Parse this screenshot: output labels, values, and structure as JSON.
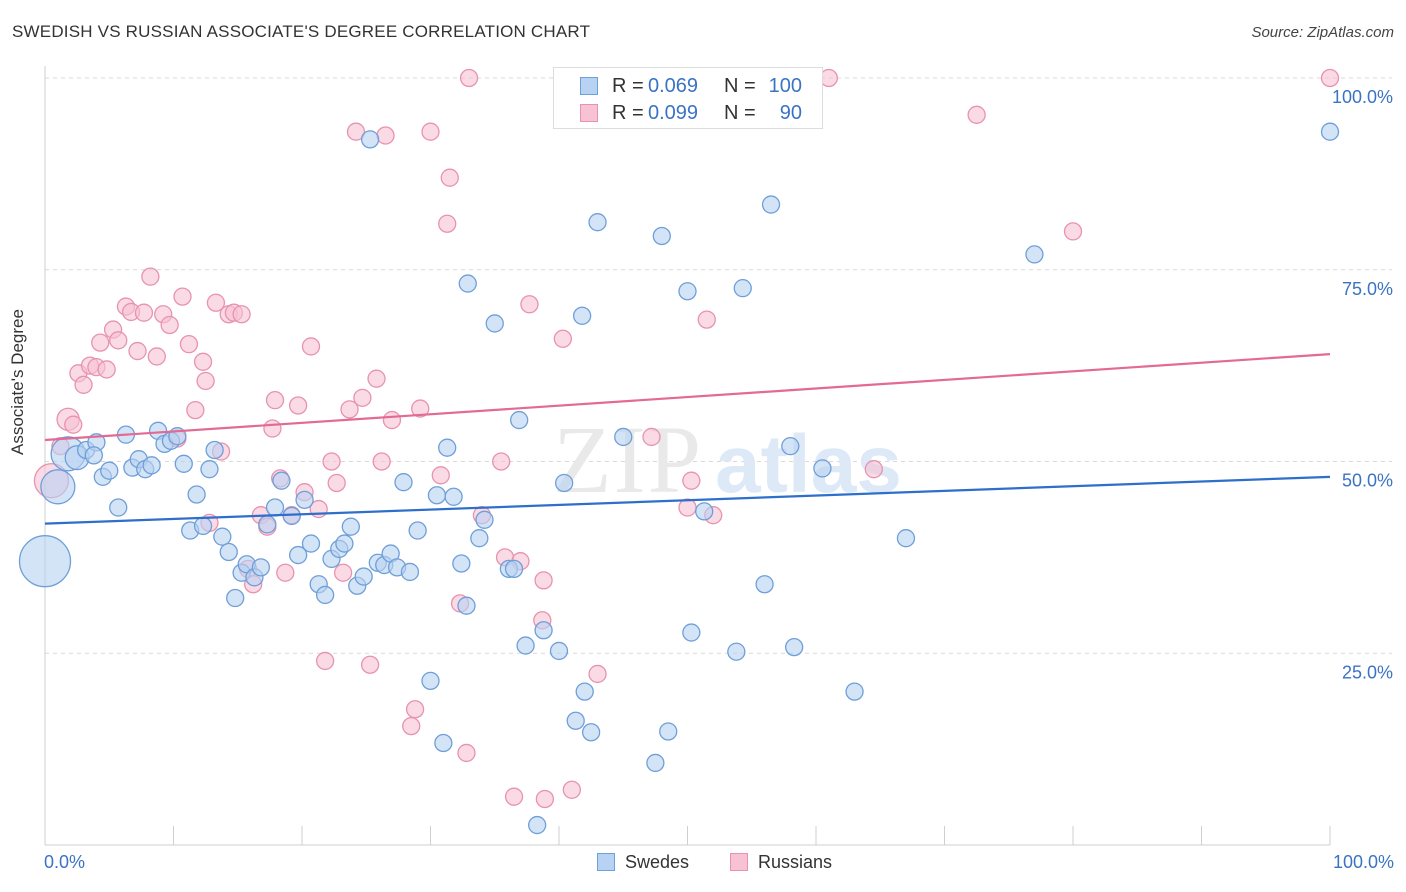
{
  "title": "SWEDISH VS RUSSIAN ASSOCIATE'S DEGREE CORRELATION CHART",
  "source": "Source: ZipAtlas.com",
  "watermark": {
    "zip": "ZIP",
    "atlas": "atlas"
  },
  "colors": {
    "swedes_fill": "#b7d2f2",
    "swedes_stroke": "#6f9fd8",
    "swedes_line": "#2d6fcb",
    "russians_fill": "#f7c2d3",
    "russians_stroke": "#e893ae",
    "russians_line": "#e26a93",
    "axis_text": "#3b73c4",
    "grid": "#d9d9d9"
  },
  "stats": {
    "swedes": {
      "r_label": "R =",
      "r_value": "0.069",
      "n_label": "N =",
      "n_value": "100"
    },
    "russians": {
      "r_label": "R =",
      "r_value": "0.099",
      "n_label": "N =",
      "n_value": "90"
    }
  },
  "legend": {
    "swedes": "Swedes",
    "russians": "Russians"
  },
  "chart_data": {
    "type": "scatter",
    "title": "SWEDISH VS RUSSIAN ASSOCIATE'S DEGREE CORRELATION CHART",
    "xlabel": "",
    "ylabel": "Associate's Degree",
    "xlim": [
      0,
      100
    ],
    "ylim": [
      0,
      100
    ],
    "x_tick_labels": [
      "0.0%",
      "100.0%"
    ],
    "y_ticks": [
      25,
      50,
      75,
      100
    ],
    "y_tick_labels": [
      "25.0%",
      "50.0%",
      "75.0%",
      "100.0%"
    ],
    "series": [
      {
        "name": "Swedes",
        "trend": {
          "x": [
            0,
            100
          ],
          "y": [
            41.9,
            48.0
          ]
        },
        "points": [
          [
            0.0,
            37.0,
            3
          ],
          [
            1.0,
            46.7,
            2
          ],
          [
            1.8,
            51.0,
            2
          ],
          [
            2.5,
            50.5,
            1.4
          ],
          [
            3.2,
            51.5,
            1
          ],
          [
            4.0,
            52.5,
            1
          ],
          [
            3.8,
            50.8,
            1
          ],
          [
            4.5,
            48.0,
            1
          ],
          [
            5.0,
            48.8,
            1
          ],
          [
            5.7,
            44.0,
            1
          ],
          [
            6.3,
            53.5,
            1
          ],
          [
            6.8,
            49.2,
            1
          ],
          [
            7.3,
            50.3,
            1
          ],
          [
            7.8,
            49.0,
            1
          ],
          [
            8.3,
            49.5,
            1
          ],
          [
            8.8,
            54.0,
            1
          ],
          [
            9.3,
            52.3,
            1
          ],
          [
            9.8,
            52.7,
            1
          ],
          [
            10.3,
            53.3,
            1
          ],
          [
            10.8,
            49.7,
            1
          ],
          [
            11.3,
            41.0,
            1
          ],
          [
            11.8,
            45.7,
            1
          ],
          [
            12.3,
            41.6,
            1
          ],
          [
            12.8,
            49.0,
            1
          ],
          [
            13.2,
            51.5,
            1
          ],
          [
            13.8,
            40.2,
            1
          ],
          [
            14.3,
            38.2,
            1
          ],
          [
            14.8,
            32.2,
            1
          ],
          [
            15.3,
            35.5,
            1
          ],
          [
            15.7,
            36.6,
            1
          ],
          [
            16.3,
            34.9,
            1
          ],
          [
            16.8,
            36.2,
            1
          ],
          [
            17.3,
            41.8,
            1
          ],
          [
            17.9,
            44.0,
            1
          ],
          [
            18.4,
            47.5,
            1
          ],
          [
            19.2,
            42.9,
            1
          ],
          [
            19.7,
            37.8,
            1
          ],
          [
            20.2,
            45.0,
            1
          ],
          [
            20.7,
            39.3,
            1
          ],
          [
            21.3,
            34.0,
            1
          ],
          [
            21.8,
            32.6,
            1
          ],
          [
            22.3,
            37.3,
            1
          ],
          [
            22.9,
            38.6,
            1
          ],
          [
            23.3,
            39.3,
            1
          ],
          [
            23.8,
            41.5,
            1
          ],
          [
            24.3,
            33.8,
            1
          ],
          [
            24.8,
            35.0,
            1
          ],
          [
            25.3,
            92.0,
            1
          ],
          [
            25.9,
            36.8,
            1
          ],
          [
            26.4,
            36.5,
            1
          ],
          [
            26.9,
            38.0,
            1
          ],
          [
            27.4,
            36.2,
            1
          ],
          [
            27.9,
            47.3,
            1
          ],
          [
            28.4,
            35.6,
            1
          ],
          [
            29.0,
            41.0,
            1
          ],
          [
            30.0,
            21.4,
            1
          ],
          [
            30.5,
            45.6,
            1
          ],
          [
            31.0,
            13.3,
            1
          ],
          [
            31.3,
            51.8,
            1
          ],
          [
            31.8,
            45.4,
            1
          ],
          [
            32.4,
            36.7,
            1
          ],
          [
            32.8,
            31.2,
            1
          ],
          [
            32.9,
            73.2,
            1
          ],
          [
            33.8,
            40.0,
            1
          ],
          [
            34.2,
            42.4,
            1
          ],
          [
            35.0,
            68.0,
            1
          ],
          [
            36.1,
            36.0,
            1
          ],
          [
            36.5,
            36.0,
            1
          ],
          [
            36.9,
            55.4,
            1
          ],
          [
            37.4,
            26.0,
            1
          ],
          [
            38.3,
            2.6,
            1
          ],
          [
            38.8,
            28.0,
            1
          ],
          [
            40.0,
            25.3,
            1
          ],
          [
            40.4,
            47.2,
            1
          ],
          [
            41.3,
            16.2,
            1
          ],
          [
            41.8,
            69.0,
            1
          ],
          [
            42.0,
            20.0,
            1
          ],
          [
            42.5,
            14.7,
            1
          ],
          [
            43.0,
            81.2,
            1
          ],
          [
            45.0,
            53.2,
            1
          ],
          [
            47.5,
            10.7,
            1
          ],
          [
            48.0,
            79.4,
            1
          ],
          [
            48.5,
            14.8,
            1
          ],
          [
            50.0,
            72.2,
            1
          ],
          [
            50.3,
            27.7,
            1
          ],
          [
            51.3,
            43.5,
            1
          ],
          [
            53.8,
            25.2,
            1
          ],
          [
            54.3,
            72.6,
            1
          ],
          [
            56.0,
            34.0,
            1
          ],
          [
            56.5,
            83.5,
            1
          ],
          [
            58.0,
            52.0,
            1
          ],
          [
            58.3,
            25.8,
            1
          ],
          [
            60.5,
            49.1,
            1
          ],
          [
            63.0,
            20.0,
            1
          ],
          [
            67.0,
            40.0,
            1
          ],
          [
            77.0,
            77.0,
            1
          ],
          [
            100.0,
            93.0,
            1
          ]
        ]
      },
      {
        "name": "Russians",
        "trend": {
          "x": [
            0,
            100
          ],
          "y": [
            52.8,
            64.0
          ]
        },
        "points": [
          [
            0.5,
            47.5,
            2
          ],
          [
            1.2,
            52.0,
            1
          ],
          [
            1.8,
            55.5,
            1.3
          ],
          [
            2.2,
            54.8,
            1
          ],
          [
            2.6,
            61.5,
            1
          ],
          [
            3.0,
            60.0,
            1
          ],
          [
            3.5,
            62.5,
            1
          ],
          [
            4.0,
            62.3,
            1
          ],
          [
            4.3,
            65.5,
            1
          ],
          [
            4.8,
            62.0,
            1
          ],
          [
            5.3,
            67.2,
            1
          ],
          [
            5.7,
            65.8,
            1
          ],
          [
            6.3,
            70.2,
            1
          ],
          [
            6.7,
            69.5,
            1
          ],
          [
            7.2,
            64.4,
            1
          ],
          [
            7.7,
            69.4,
            1
          ],
          [
            8.2,
            74.1,
            1
          ],
          [
            8.7,
            63.7,
            1
          ],
          [
            9.2,
            69.2,
            1
          ],
          [
            9.7,
            67.8,
            1
          ],
          [
            10.3,
            53.0,
            1
          ],
          [
            10.7,
            71.5,
            1
          ],
          [
            11.2,
            65.3,
            1
          ],
          [
            11.7,
            56.7,
            1
          ],
          [
            12.3,
            63.0,
            1
          ],
          [
            12.5,
            60.5,
            1
          ],
          [
            12.8,
            42.0,
            1
          ],
          [
            13.3,
            70.7,
            1
          ],
          [
            13.7,
            51.3,
            1
          ],
          [
            14.3,
            69.2,
            1
          ],
          [
            14.7,
            69.4,
            1
          ],
          [
            15.3,
            69.2,
            1
          ],
          [
            15.8,
            36.0,
            1
          ],
          [
            16.2,
            34.0,
            1
          ],
          [
            16.8,
            43.0,
            1
          ],
          [
            17.3,
            41.5,
            1
          ],
          [
            17.7,
            54.3,
            1
          ],
          [
            17.9,
            58.0,
            1
          ],
          [
            18.3,
            47.8,
            1
          ],
          [
            18.7,
            35.5,
            1
          ],
          [
            19.2,
            43.0,
            1
          ],
          [
            19.7,
            57.3,
            1
          ],
          [
            20.2,
            46.0,
            1
          ],
          [
            20.7,
            65.0,
            1
          ],
          [
            21.3,
            43.8,
            1
          ],
          [
            21.8,
            24.0,
            1
          ],
          [
            22.3,
            50.0,
            1
          ],
          [
            22.7,
            47.2,
            1
          ],
          [
            23.2,
            35.5,
            1
          ],
          [
            23.7,
            56.8,
            1
          ],
          [
            24.2,
            93.0,
            1
          ],
          [
            24.7,
            58.3,
            1
          ],
          [
            25.3,
            23.5,
            1
          ],
          [
            25.8,
            60.8,
            1
          ],
          [
            26.2,
            50.0,
            1
          ],
          [
            26.5,
            92.5,
            1
          ],
          [
            27.0,
            55.4,
            1
          ],
          [
            28.5,
            15.5,
            1
          ],
          [
            28.8,
            17.7,
            1
          ],
          [
            29.2,
            56.9,
            1
          ],
          [
            30.0,
            93.0,
            1
          ],
          [
            30.8,
            48.2,
            1
          ],
          [
            31.3,
            81.0,
            1
          ],
          [
            31.5,
            87.0,
            1
          ],
          [
            32.3,
            31.5,
            1
          ],
          [
            32.8,
            12.0,
            1
          ],
          [
            33.0,
            100.0,
            1
          ],
          [
            34.0,
            43.0,
            1
          ],
          [
            35.5,
            50.0,
            1
          ],
          [
            35.8,
            37.5,
            1
          ],
          [
            36.5,
            6.3,
            1
          ],
          [
            37.0,
            37.0,
            1
          ],
          [
            37.7,
            70.5,
            1
          ],
          [
            38.7,
            29.3,
            1
          ],
          [
            38.8,
            34.5,
            1
          ],
          [
            38.9,
            6.0,
            1
          ],
          [
            40.3,
            66.0,
            1
          ],
          [
            41.0,
            7.2,
            1
          ],
          [
            43.0,
            22.3,
            1
          ],
          [
            47.2,
            53.2,
            1
          ],
          [
            50.0,
            44.0,
            1
          ],
          [
            50.3,
            47.5,
            1
          ],
          [
            51.5,
            68.5,
            1
          ],
          [
            52.0,
            43.0,
            1
          ],
          [
            59.5,
            100.0,
            1
          ],
          [
            61.0,
            100.0,
            1
          ],
          [
            64.5,
            49.0,
            1
          ],
          [
            72.5,
            95.2,
            1
          ],
          [
            80.0,
            80.0,
            1
          ],
          [
            100.0,
            100.0,
            1
          ]
        ]
      }
    ]
  }
}
